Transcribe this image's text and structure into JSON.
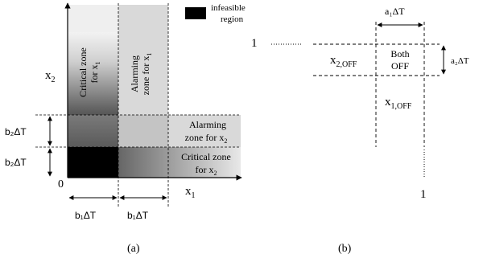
{
  "legend": {
    "text_line1": "infeasible",
    "text_line2": "region",
    "swatch_color": "#000000"
  },
  "panel_a": {
    "caption": "(a)",
    "x_axis_label": "x",
    "x_axis_sub": "1",
    "y_axis_label": "x",
    "y_axis_sub": "2",
    "origin_label": "0",
    "critical_x1": [
      "Critical zone",
      "for x",
      "1"
    ],
    "alarming_x1": [
      "Alarming",
      "zone for x",
      "1"
    ],
    "alarming_x2": [
      "Alarming",
      "zone for x",
      "2"
    ],
    "critical_x2": [
      "Critical zone",
      "for x",
      "2"
    ],
    "dims": {
      "b2_upper": "b₂ΔT",
      "b2_lower": "b₂ΔT",
      "b1_left": "b₁ΔT",
      "b1_right": "b₁ΔT"
    }
  },
  "panel_b": {
    "caption": "(b)",
    "top_tick": "1",
    "right_tick": "1",
    "a1_label": "a₁ΔT",
    "a2_label": "a₂ΔT",
    "x2off": [
      "x",
      "2,OFF"
    ],
    "x1off": [
      "x",
      "1,OFF"
    ],
    "both_off": [
      "Both",
      "OFF"
    ]
  },
  "colors": {
    "infeasible": "#000000",
    "dark_gray": "#4d4d4d",
    "mid_gray": "#8c8c8c",
    "light_gray": "#d9d9d9",
    "pale_gray": "#efefef"
  }
}
